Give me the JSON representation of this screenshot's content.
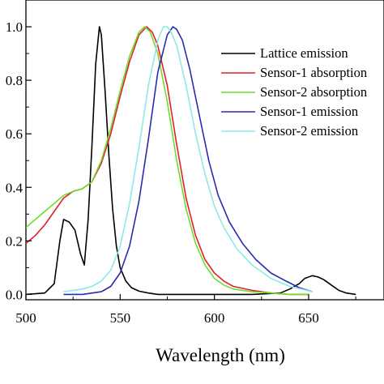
{
  "chart_data": {
    "type": "line",
    "xlabel": "Wavelength (nm)",
    "ylabel": "",
    "xlim": [
      500,
      690
    ],
    "ylim": [
      -0.02,
      1.1
    ],
    "x_ticks": [
      "500",
      "550",
      "600",
      "650"
    ],
    "y_ticks": [
      "0.0",
      "0.2",
      "0.4",
      "0.6",
      "0.8",
      "1.0"
    ],
    "grid": false,
    "legend_position": "top-right",
    "series": [
      {
        "name": "Lattice emission",
        "color": "#000000",
        "x": [
          500,
          510,
          515,
          518,
          520,
          523,
          526,
          529,
          531,
          533,
          535,
          537,
          539,
          540,
          542,
          544,
          546,
          548,
          550,
          553,
          556,
          560,
          565,
          570,
          580,
          600,
          620,
          635,
          640,
          645,
          648,
          652,
          655,
          658,
          662,
          666,
          670,
          675
        ],
        "y": [
          0.0,
          0.005,
          0.04,
          0.2,
          0.28,
          0.27,
          0.24,
          0.15,
          0.11,
          0.28,
          0.55,
          0.86,
          1.0,
          0.97,
          0.76,
          0.52,
          0.32,
          0.18,
          0.1,
          0.05,
          0.025,
          0.012,
          0.005,
          0.0,
          0.0,
          0.0,
          0.0,
          0.005,
          0.02,
          0.04,
          0.06,
          0.07,
          0.065,
          0.055,
          0.035,
          0.015,
          0.005,
          0.0
        ]
      },
      {
        "name": "Sensor-1 absorption",
        "color": "#e0202a",
        "x": [
          500,
          505,
          510,
          515,
          520,
          525,
          530,
          535,
          540,
          545,
          550,
          555,
          560,
          564,
          567,
          570,
          575,
          580,
          585,
          590,
          595,
          600,
          605,
          610,
          620,
          630,
          640,
          650
        ],
        "y": [
          0.19,
          0.22,
          0.26,
          0.31,
          0.36,
          0.385,
          0.395,
          0.42,
          0.49,
          0.6,
          0.74,
          0.87,
          0.97,
          1.0,
          0.98,
          0.93,
          0.78,
          0.56,
          0.36,
          0.22,
          0.13,
          0.08,
          0.05,
          0.03,
          0.015,
          0.005,
          0.0,
          0.0
        ]
      },
      {
        "name": "Sensor-2 absorption",
        "color": "#6fdc2a",
        "x": [
          500,
          505,
          510,
          515,
          520,
          525,
          530,
          535,
          540,
          545,
          550,
          555,
          560,
          563,
          566,
          570,
          575,
          580,
          585,
          590,
          595,
          600,
          605,
          610,
          620,
          630,
          640,
          650
        ],
        "y": [
          0.25,
          0.28,
          0.31,
          0.34,
          0.37,
          0.385,
          0.395,
          0.42,
          0.5,
          0.62,
          0.76,
          0.89,
          0.98,
          1.0,
          0.98,
          0.9,
          0.72,
          0.5,
          0.32,
          0.19,
          0.11,
          0.06,
          0.035,
          0.02,
          0.01,
          0.005,
          0.0,
          0.0
        ]
      },
      {
        "name": "Sensor-1 emission",
        "color": "#2a2ab0",
        "x": [
          520,
          530,
          540,
          545,
          550,
          555,
          560,
          565,
          570,
          575,
          578,
          580,
          583,
          587,
          592,
          597,
          602,
          608,
          615,
          622,
          630,
          638,
          645,
          652
        ],
        "y": [
          0.0,
          0.0,
          0.01,
          0.03,
          0.08,
          0.18,
          0.35,
          0.58,
          0.83,
          0.97,
          1.0,
          0.99,
          0.95,
          0.84,
          0.67,
          0.5,
          0.37,
          0.27,
          0.19,
          0.13,
          0.08,
          0.05,
          0.025,
          0.01
        ]
      },
      {
        "name": "Sensor-2 emission",
        "color": "#8fe8e8",
        "x": [
          520,
          530,
          535,
          540,
          545,
          550,
          555,
          560,
          565,
          570,
          573,
          575,
          577,
          580,
          585,
          590,
          595,
          600,
          605,
          612,
          620,
          630,
          640,
          652
        ],
        "y": [
          0.01,
          0.02,
          0.03,
          0.05,
          0.09,
          0.18,
          0.34,
          0.55,
          0.78,
          0.95,
          1.0,
          1.0,
          0.98,
          0.93,
          0.78,
          0.6,
          0.45,
          0.33,
          0.25,
          0.17,
          0.11,
          0.06,
          0.03,
          0.01
        ]
      }
    ]
  }
}
